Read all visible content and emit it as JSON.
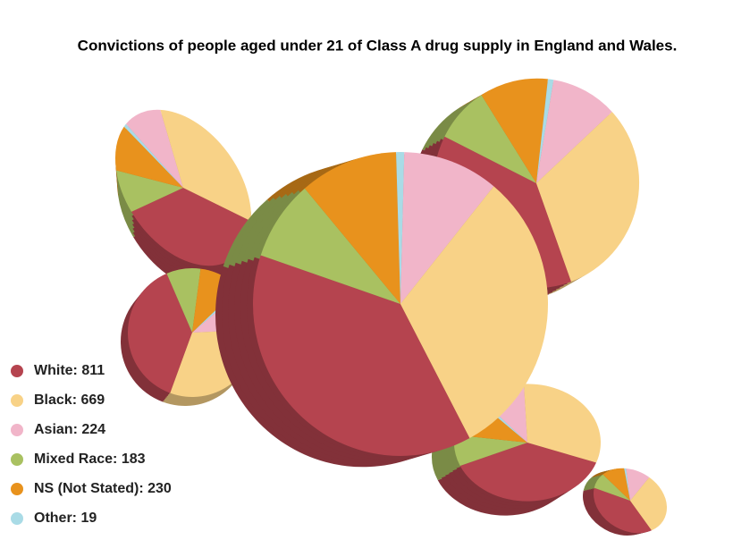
{
  "chart_data": {
    "type": "pie",
    "title": "Convictions of people aged under 21 of Class A drug supply in England and Wales.",
    "categories": [
      "White: 811",
      "Black: 669",
      "Asian: 224",
      "Mixed Race: 183",
      "NS (Not Stated): 230",
      "Other: 19"
    ],
    "values": [
      811,
      669,
      224,
      183,
      230,
      19
    ],
    "colors": [
      "#b5444f",
      "#f8d287",
      "#f1b5c9",
      "#a9c161",
      "#e8921d",
      "#a9dbe6"
    ],
    "legend": "bottom-left"
  }
}
